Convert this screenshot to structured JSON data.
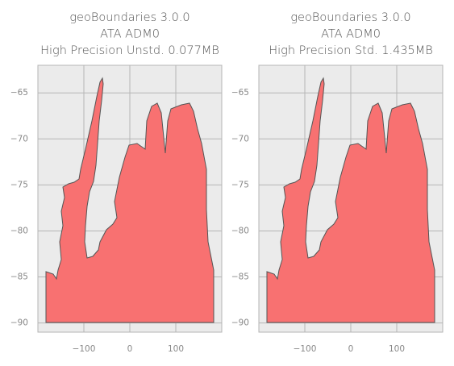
{
  "chart_data": [
    {
      "type": "map",
      "title_lines": [
        "geoBoundaries 3.0.0",
        "ATA ADM0",
        "High Precision Unstd. 0.077MB"
      ],
      "xlim": [
        -200,
        200
      ],
      "ylim": [
        -91,
        -62
      ],
      "xticks": [
        {
          "value": -100,
          "label": "−100"
        },
        0,
        100
      ],
      "yticks": [
        {
          "value": -90,
          "label": "−90"
        },
        {
          "value": -85,
          "label": "−85"
        },
        {
          "value": -80,
          "label": "−80"
        },
        {
          "value": -75,
          "label": "−75"
        },
        {
          "value": -70,
          "label": "−70"
        },
        {
          "value": -65,
          "label": "−65"
        }
      ],
      "grid": true,
      "color": "#f87171"
    },
    {
      "type": "map",
      "title_lines": [
        "geoBoundaries 3.0.0",
        "ATA ADM0",
        "High Precision Std. 1.435MB"
      ],
      "xlim": [
        -200,
        200
      ],
      "ylim": [
        -91,
        -62
      ],
      "xticks": [
        {
          "value": -100,
          "label": "−100"
        },
        0,
        100
      ],
      "yticks": [
        {
          "value": -90,
          "label": "−90"
        },
        {
          "value": -85,
          "label": "−85"
        },
        {
          "value": -80,
          "label": "−80"
        },
        {
          "value": -75,
          "label": "−75"
        },
        {
          "value": -70,
          "label": "−70"
        },
        {
          "value": -65,
          "label": "−65"
        }
      ],
      "grid": true,
      "color": "#f87171"
    }
  ]
}
